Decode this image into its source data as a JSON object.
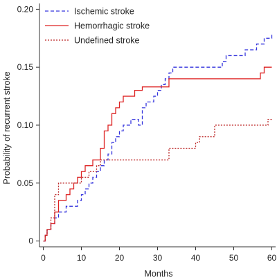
{
  "chart_data": {
    "type": "line",
    "step": true,
    "title": "",
    "xlabel": "Months",
    "ylabel": "Probability of recurrent stroke",
    "xlim": [
      -1,
      61
    ],
    "ylim": [
      -0.005,
      0.205
    ],
    "xticks": [
      0,
      10,
      20,
      30,
      40,
      50,
      60
    ],
    "xtick_labels": [
      "0",
      "10",
      "20",
      "30",
      "40",
      "50",
      "60"
    ],
    "yticks": [
      0,
      0.05,
      0.1,
      0.15,
      0.2
    ],
    "ytick_labels": [
      "0",
      "0.05",
      "0.10",
      "0.15",
      "0.20"
    ],
    "grid": false,
    "legend_position": "top-left",
    "series": [
      {
        "name": "Ischemic stroke",
        "color": "#3333dd",
        "line_style": "dashed",
        "x": [
          0,
          0.5,
          1,
          2,
          3,
          4,
          6,
          9,
          10,
          11,
          12,
          13,
          14,
          15,
          16,
          17,
          18,
          19,
          20,
          21,
          23,
          25,
          26,
          27,
          29,
          30,
          31,
          32,
          33,
          34,
          35,
          40,
          47,
          48,
          53,
          56,
          57,
          58,
          59,
          60
        ],
        "y": [
          0,
          0.005,
          0.01,
          0.015,
          0.02,
          0.025,
          0.03,
          0.035,
          0.04,
          0.045,
          0.05,
          0.055,
          0.06,
          0.065,
          0.07,
          0.075,
          0.085,
          0.09,
          0.095,
          0.1,
          0.105,
          0.1,
          0.115,
          0.12,
          0.125,
          0.13,
          0.135,
          0.14,
          0.145,
          0.15,
          0.15,
          0.15,
          0.155,
          0.16,
          0.165,
          0.17,
          0.17,
          0.175,
          0.175,
          0.178
        ]
      },
      {
        "name": "Hemorrhagic stroke",
        "color": "#dd2222",
        "line_style": "solid",
        "x": [
          0,
          0.5,
          1,
          2,
          3,
          4,
          6,
          7,
          8,
          9,
          10,
          11,
          12,
          13,
          14,
          15,
          16,
          17,
          18,
          19,
          20,
          21,
          23,
          24,
          25,
          26,
          27,
          33,
          34,
          45,
          56,
          57,
          58,
          59,
          60
        ],
        "y": [
          0,
          0.005,
          0.01,
          0.015,
          0.025,
          0.035,
          0.04,
          0.045,
          0.05,
          0.055,
          0.06,
          0.065,
          0.065,
          0.07,
          0.07,
          0.08,
          0.095,
          0.1,
          0.11,
          0.115,
          0.12,
          0.125,
          0.125,
          0.13,
          0.13,
          0.133,
          0.133,
          0.14,
          0.14,
          0.14,
          0.14,
          0.145,
          0.15,
          0.15,
          0.15
        ]
      },
      {
        "name": "Undefined stroke",
        "color": "#bb2222",
        "line_style": "dotted",
        "x": [
          0,
          0.5,
          1,
          2,
          3,
          4,
          5,
          8,
          9,
          10,
          12,
          13,
          14,
          15,
          16,
          20,
          33,
          34,
          39,
          40,
          41,
          44,
          45,
          47,
          59,
          60
        ],
        "y": [
          0,
          0.005,
          0.01,
          0.02,
          0.04,
          0.05,
          0.05,
          0.05,
          0.05,
          0.055,
          0.06,
          0.06,
          0.065,
          0.07,
          0.07,
          0.07,
          0.08,
          0.08,
          0.08,
          0.085,
          0.09,
          0.09,
          0.1,
          0.1,
          0.105,
          0.105
        ]
      }
    ]
  }
}
